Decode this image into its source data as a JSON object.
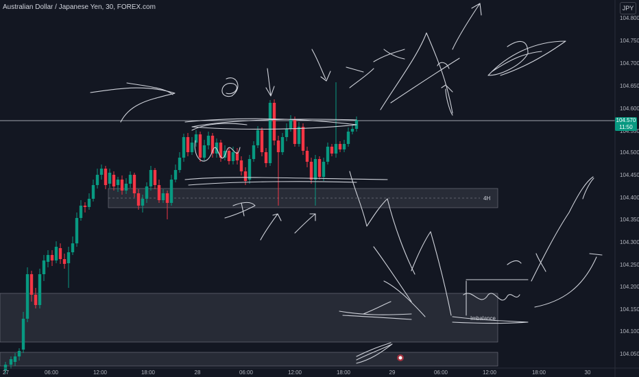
{
  "header": {
    "title": "Australian Dollar / Japanese Yen, 30, FOREX.com",
    "currency": "JPY"
  },
  "price_axis": {
    "ticks": [
      "104.800",
      "104.750",
      "104.700",
      "104.650",
      "104.600",
      "104.550",
      "104.500",
      "104.450",
      "104.400",
      "104.350",
      "104.300",
      "104.250",
      "104.200",
      "104.150",
      "104.100",
      "104.050"
    ],
    "current_price": "104.570",
    "countdown": "11:50",
    "current_color": "#089981"
  },
  "time_axis": {
    "ticks": [
      "27",
      "06:00",
      "12:00",
      "18:00",
      "28",
      "06:00",
      "12:00",
      "18:00",
      "29",
      "06:00",
      "12:00",
      "18:00",
      "30"
    ]
  },
  "zones": {
    "label_4h": "4H",
    "imbalance_label": "Imbalance"
  },
  "colors": {
    "up": "#089981",
    "down": "#f23645",
    "background": "#131722",
    "drawing": "#d1d4dc"
  },
  "icons": {
    "alert_marker": "alert-icon"
  }
}
